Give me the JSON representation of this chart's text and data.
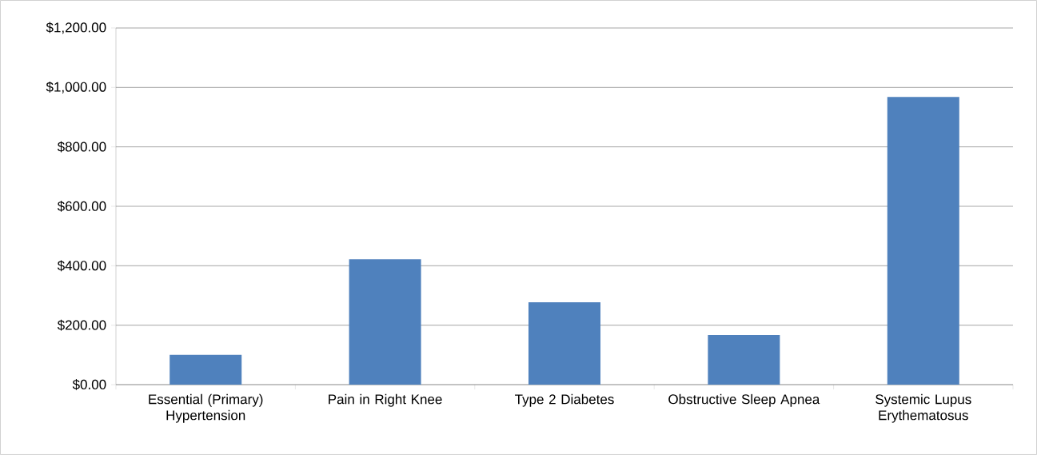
{
  "chart_data": {
    "type": "bar",
    "categories": [
      "Essential (Primary) Hypertension",
      "Pain in Right Knee",
      "Type 2 Diabetes",
      "Obstructive Sleep Apnea",
      "Systemic Lupus Erythematosus"
    ],
    "values": [
      100,
      422,
      277,
      167,
      968
    ],
    "color": "#4f81bd",
    "ylim": [
      0,
      1200
    ],
    "yticks": [
      {
        "value": 0,
        "label": "$0.00"
      },
      {
        "value": 200,
        "label": "$200.00"
      },
      {
        "value": 400,
        "label": "$400.00"
      },
      {
        "value": 600,
        "label": "$600.00"
      },
      {
        "value": 800,
        "label": "$800.00"
      },
      {
        "value": 1000,
        "label": "$1,000.00"
      },
      {
        "value": 1200,
        "label": "$1,200.00"
      }
    ],
    "grid": "y"
  }
}
